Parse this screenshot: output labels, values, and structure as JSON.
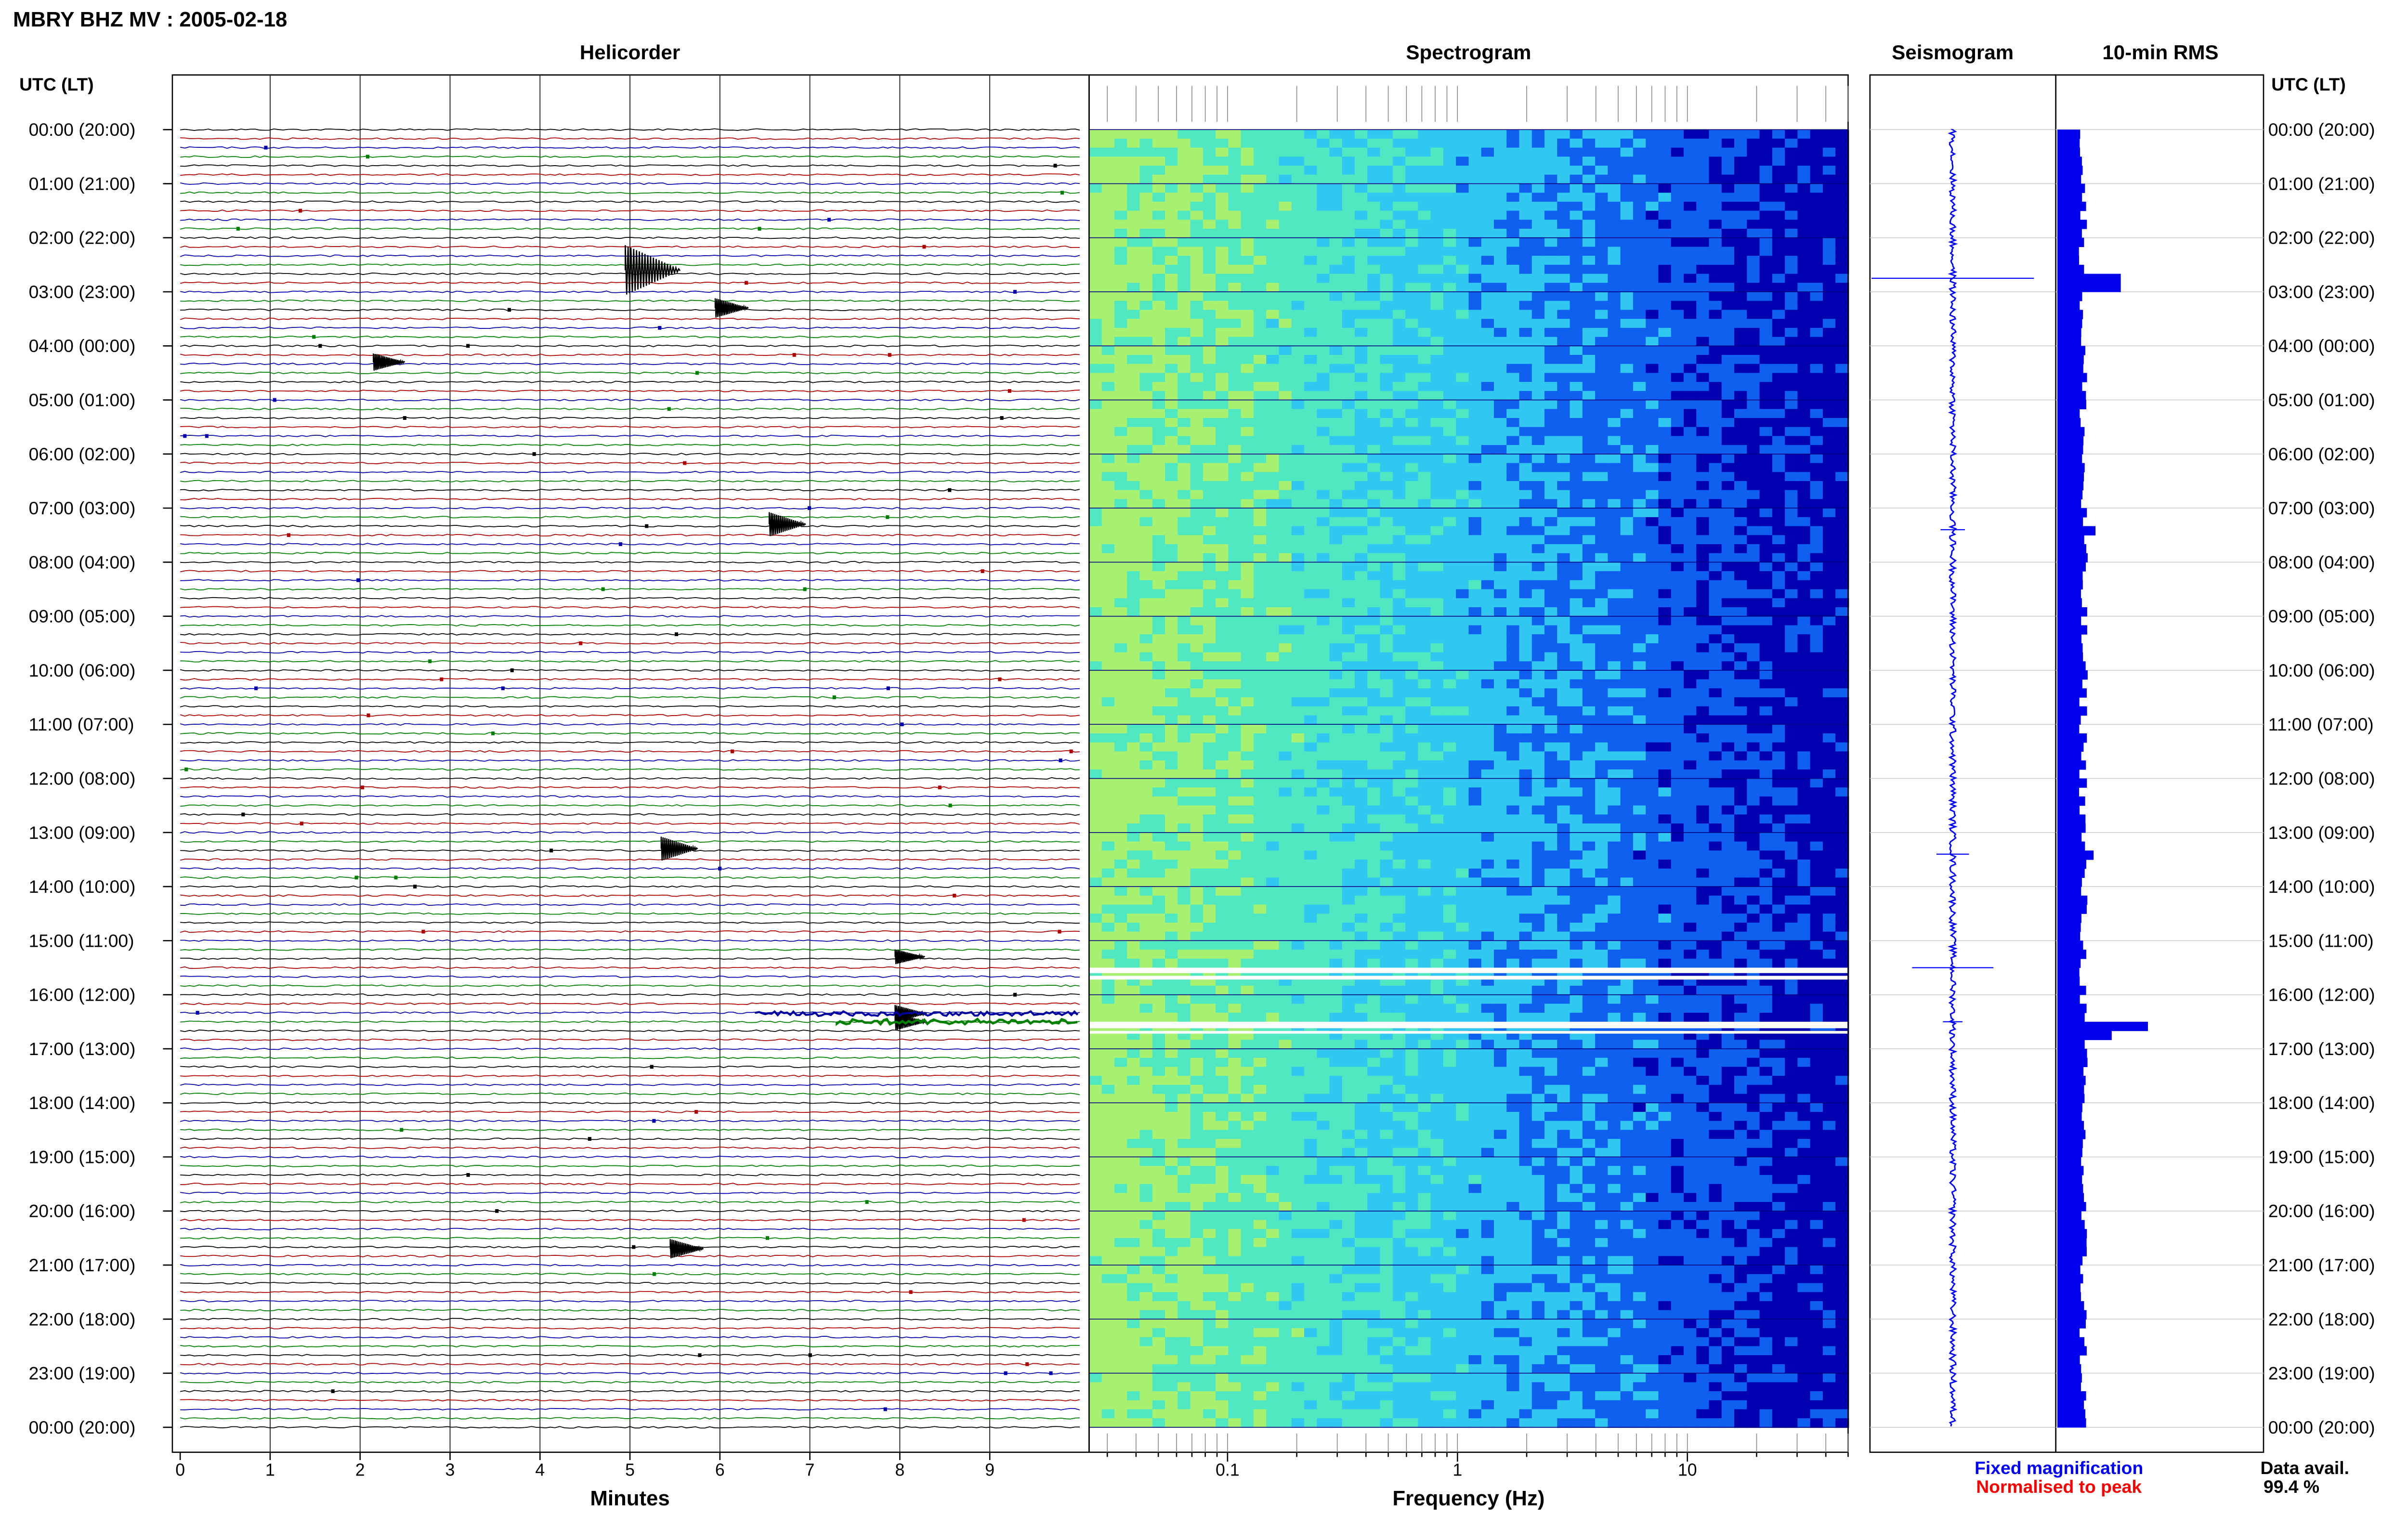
{
  "header": {
    "title": "MBRY BHZ MV : 2005-02-18",
    "panel_titles": [
      "Helicorder",
      "Spectrogram",
      "Seismogram",
      "10-min RMS"
    ],
    "utc_label": "UTC (LT)"
  },
  "time_labels": [
    "00:00 (20:00)",
    "01:00 (21:00)",
    "02:00 (22:00)",
    "03:00 (23:00)",
    "04:00 (00:00)",
    "05:00 (01:00)",
    "06:00 (02:00)",
    "07:00 (03:00)",
    "08:00 (04:00)",
    "09:00 (05:00)",
    "10:00 (06:00)",
    "11:00 (07:00)",
    "12:00 (08:00)",
    "13:00 (09:00)",
    "14:00 (10:00)",
    "15:00 (11:00)",
    "16:00 (12:00)",
    "17:00 (13:00)",
    "18:00 (14:00)",
    "19:00 (15:00)",
    "20:00 (16:00)",
    "21:00 (17:00)",
    "22:00 (18:00)",
    "23:00 (19:00)",
    "00:00 (20:00)"
  ],
  "footer": {
    "fixed_magnification": "Fixed magnification",
    "normalised_to_peak": "Normalised to peak",
    "data_avail_label": "Data avail.",
    "data_avail_value": "99.4 %"
  },
  "colors": {
    "fixed": "#0000ff",
    "normalised": "#ff0000",
    "trace_colors": [
      "#000000",
      "#b00000",
      "#0000b0",
      "#008000"
    ],
    "rms_bar": "#0000ee",
    "seismogram": "#0000ff",
    "spectrogram_ramp": [
      "#a8f070",
      "#50e8c0",
      "#30c8f0",
      "#1060f0",
      "#0000b0"
    ]
  },
  "chart_data": [
    {
      "type": "line",
      "panel": "Helicorder",
      "xlabel": "Minutes",
      "x_ticks": [
        "0",
        "1",
        "2",
        "3",
        "4",
        "5",
        "6",
        "7",
        "8",
        "9"
      ],
      "xlim": [
        0,
        10
      ],
      "rows_per_hour": 6,
      "hours": 24,
      "events": [
        {
          "hour": 2.6,
          "minute": 5.0,
          "amp": 1.0
        },
        {
          "hour": 3.3,
          "minute": 6.0,
          "amp": 0.35
        },
        {
          "hour": 4.3,
          "minute": 2.2,
          "amp": 0.3
        },
        {
          "hour": 7.3,
          "minute": 6.6,
          "amp": 0.45
        },
        {
          "hour": 13.3,
          "minute": 5.4,
          "amp": 0.45
        },
        {
          "hour": 15.3,
          "minute": 8.0,
          "amp": 0.25
        },
        {
          "hour": 16.35,
          "minute": 8.0,
          "amp": 0.3
        },
        {
          "hour": 16.5,
          "minute": 8.0,
          "amp": 0.3
        },
        {
          "hour": 20.7,
          "minute": 5.5,
          "amp": 0.35
        }
      ]
    },
    {
      "type": "heatmap",
      "panel": "Spectrogram",
      "xlabel": "Frequency (Hz)",
      "x_scale": "log",
      "xlim": [
        0.025,
        50
      ],
      "x_tick_labels": [
        "0.1",
        "1",
        "10"
      ],
      "y_range_hours": [
        0,
        24
      ]
    },
    {
      "type": "line",
      "panel": "Seismogram",
      "y_range_hours": [
        0,
        24
      ],
      "spikes": [
        {
          "hour": 2.75,
          "amp": 1.0
        },
        {
          "hour": 7.4,
          "amp": 0.15
        },
        {
          "hour": 13.4,
          "amp": 0.2
        },
        {
          "hour": 15.5,
          "amp": 0.5
        },
        {
          "hour": 16.5,
          "amp": 0.12
        }
      ]
    },
    {
      "type": "bar",
      "panel": "10-min RMS",
      "y_range_hours": [
        0,
        24
      ],
      "orientation": "horizontal",
      "baseline": 0.28,
      "peaks": [
        {
          "hour": 2.75,
          "value": 0.7
        },
        {
          "hour": 7.4,
          "value": 0.42
        },
        {
          "hour": 13.4,
          "value": 0.4
        },
        {
          "hour": 16.5,
          "value": 1.0
        },
        {
          "hour": 16.6,
          "value": 0.6
        }
      ]
    }
  ]
}
